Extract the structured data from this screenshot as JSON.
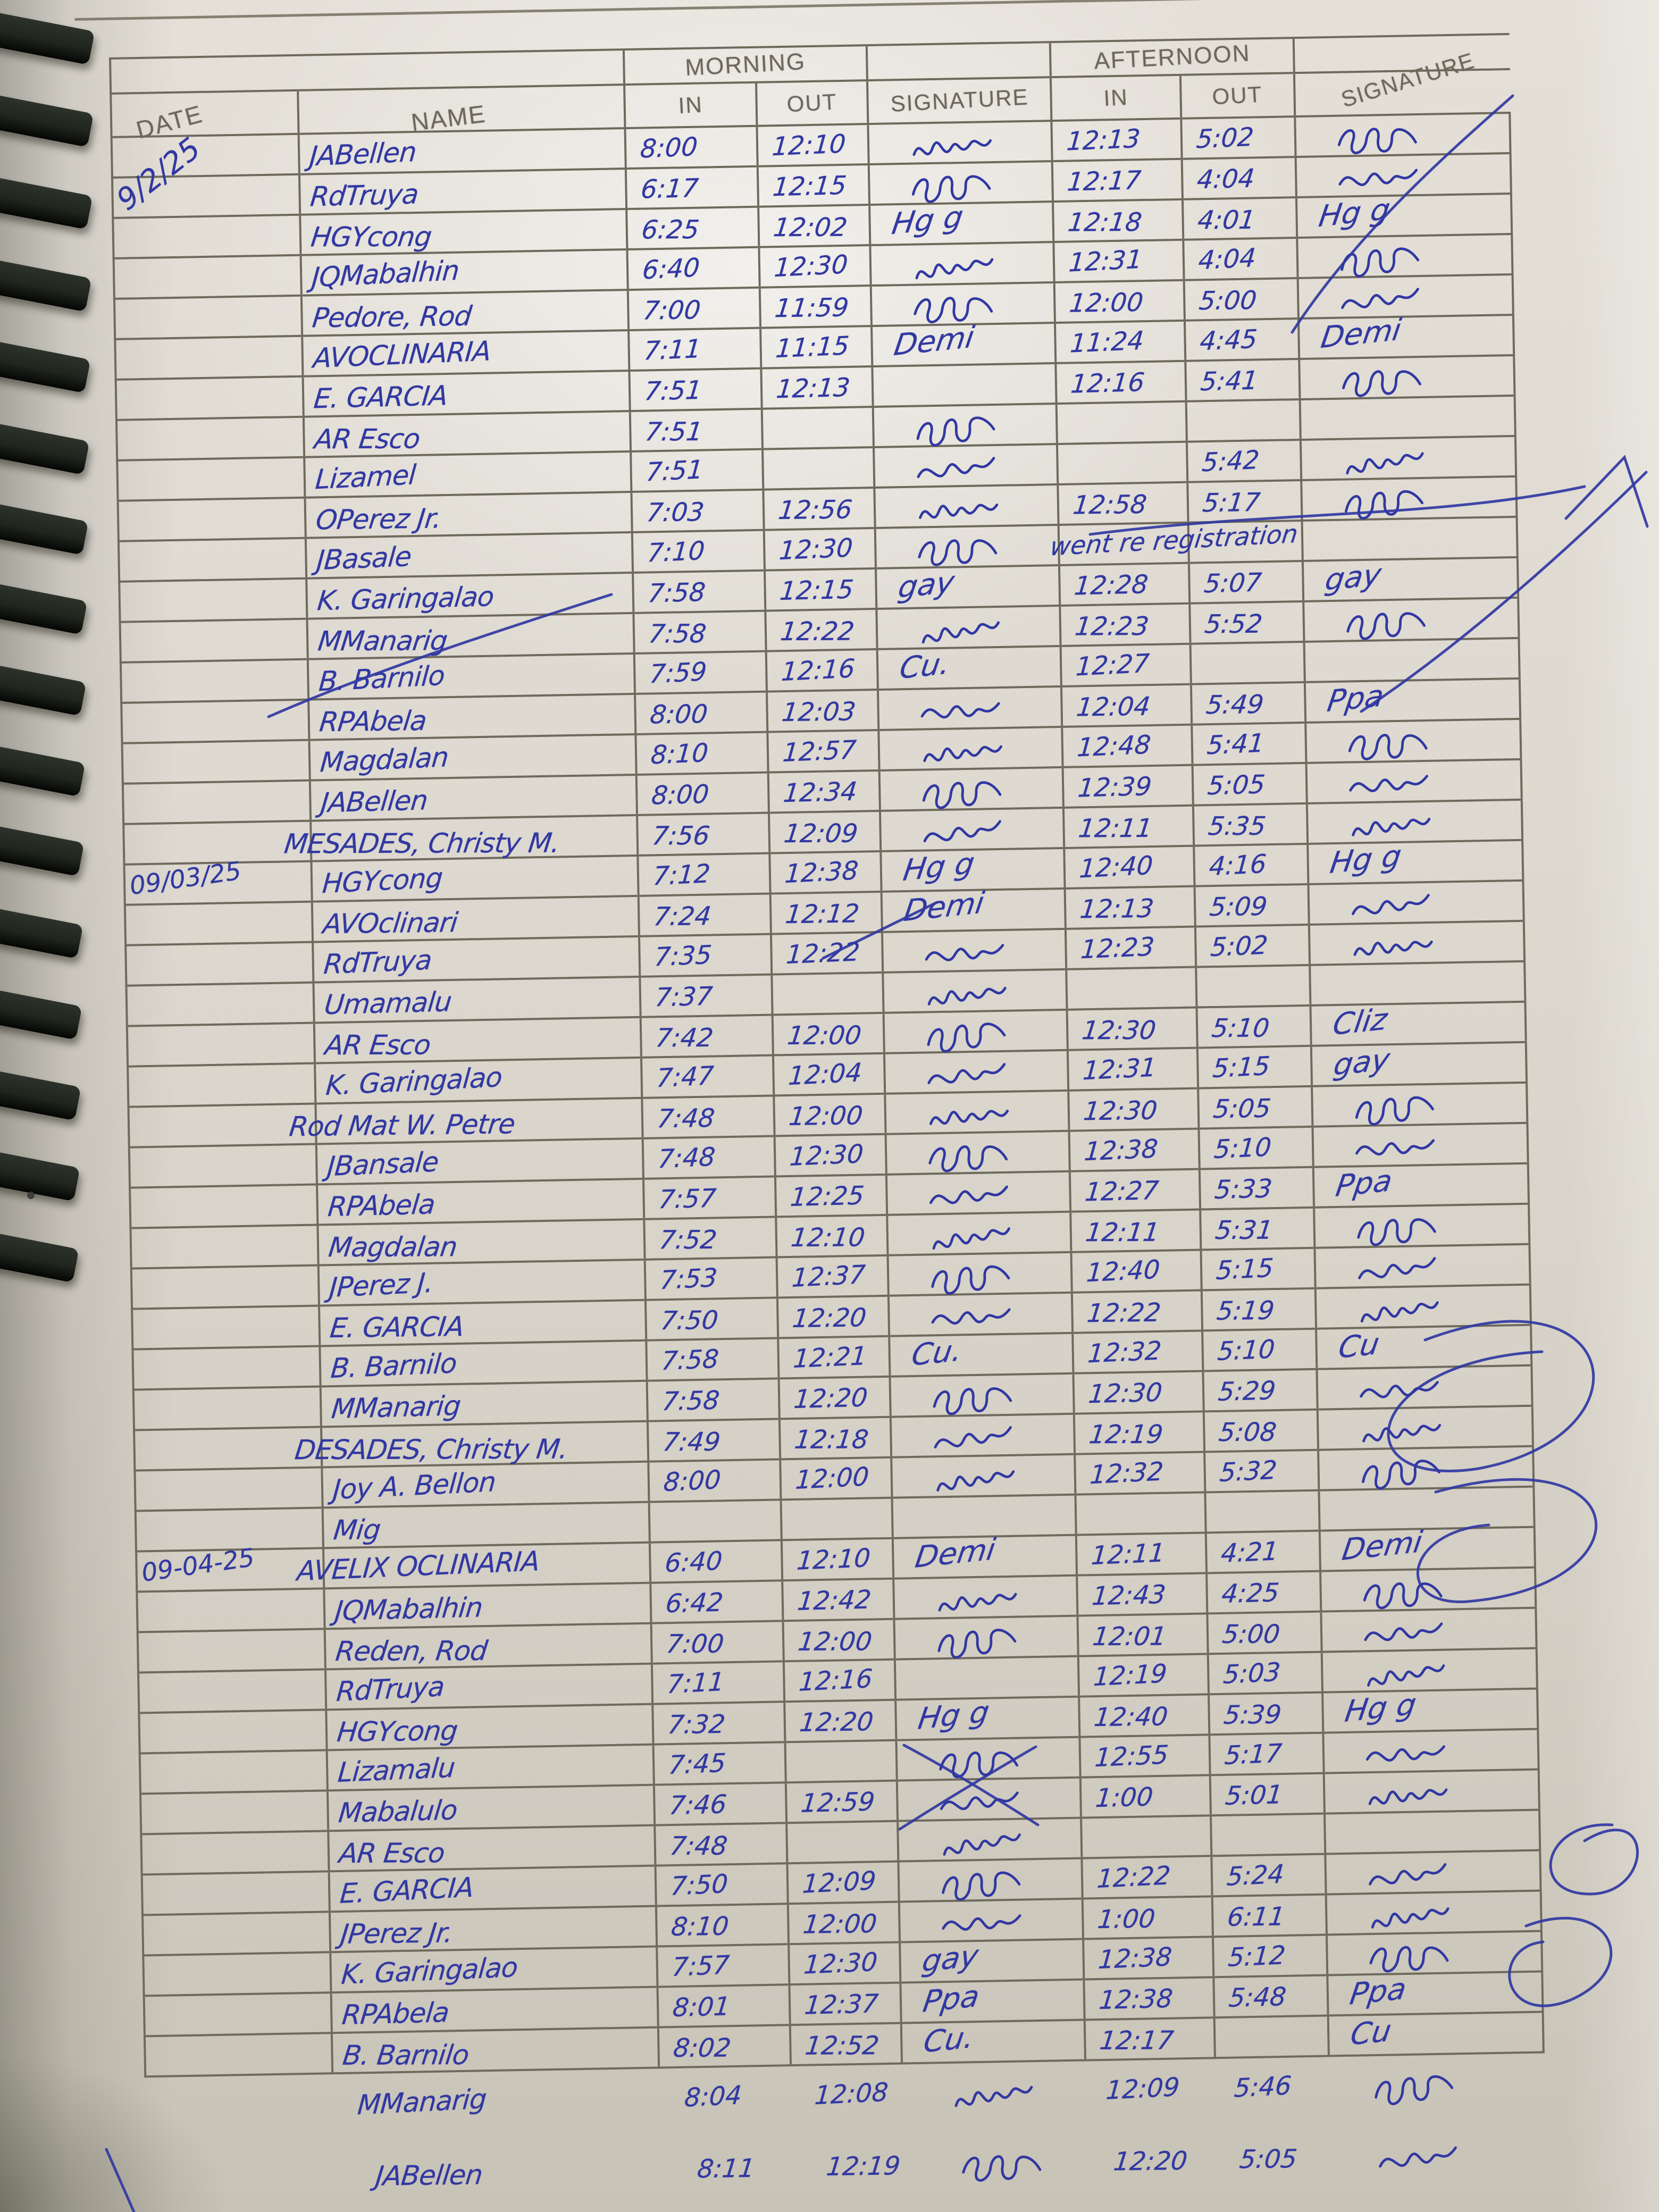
{
  "colors": {
    "ink": "#3138a2",
    "line": "#6e6a5c",
    "coil": "#20251d"
  },
  "header": {
    "date": "DATE",
    "name": "NAME",
    "morning": "MORNING",
    "afternoon": "AFTERNOON",
    "in": "IN",
    "out": "OUT",
    "signature": "SIGNATURE"
  },
  "rows": [
    {
      "date": "",
      "name": "JABellen",
      "m_in": "8:00",
      "m_out": "12:10",
      "m_sig": "scribble",
      "a_in": "12:13",
      "a_out": "5:02",
      "a_sig": "scribble",
      "note": ""
    },
    {
      "date": "9/2/25",
      "name": "RdTruya",
      "m_in": "6:17",
      "m_out": "12:15",
      "m_sig": "scribble",
      "a_in": "12:17",
      "a_out": "4:04",
      "a_sig": "scribble",
      "note": ""
    },
    {
      "date": "",
      "name": "HGYcong",
      "m_in": "6:25",
      "m_out": "12:02",
      "m_sig": "Hg g",
      "a_in": "12:18",
      "a_out": "4:01",
      "a_sig": "Hg g",
      "note": ""
    },
    {
      "date": "",
      "name": "JQMabalhin",
      "m_in": "6:40",
      "m_out": "12:30",
      "m_sig": "scribble",
      "a_in": "12:31",
      "a_out": "4:04",
      "a_sig": "scribble",
      "note": ""
    },
    {
      "date": "",
      "name": "Pedore, Rod",
      "m_in": "7:00",
      "m_out": "11:59",
      "m_sig": "scribble",
      "a_in": "12:00",
      "a_out": "5:00",
      "a_sig": "scribble",
      "note": ""
    },
    {
      "date": "",
      "name": "AVOCLINARIA",
      "m_in": "7:11",
      "m_out": "11:15",
      "m_sig": "Demi",
      "a_in": "11:24",
      "a_out": "4:45",
      "a_sig": "Demi",
      "note": ""
    },
    {
      "date": "",
      "name": "E. GARCIA",
      "m_in": "7:51",
      "m_out": "12:13",
      "m_sig": "",
      "a_in": "12:16",
      "a_out": "5:41",
      "a_sig": "scribble",
      "note": ""
    },
    {
      "date": "",
      "name": "AR Esco",
      "m_in": "7:51",
      "m_out": "",
      "m_sig": "scribble",
      "a_in": "",
      "a_out": "",
      "a_sig": "",
      "note": ""
    },
    {
      "date": "",
      "name": "Lizamel",
      "m_in": "7:51",
      "m_out": "",
      "m_sig": "scribble",
      "a_in": "",
      "a_out": "5:42",
      "a_sig": "scribble",
      "note": ""
    },
    {
      "date": "",
      "name": "OPerez Jr.",
      "m_in": "7:03",
      "m_out": "12:56",
      "m_sig": "scribble",
      "a_in": "12:58",
      "a_out": "5:17",
      "a_sig": "scribble",
      "note": ""
    },
    {
      "date": "",
      "name": "JBasale",
      "m_in": "7:10",
      "m_out": "12:30",
      "m_sig": "scribble",
      "a_in": "",
      "a_out": "",
      "a_sig": "",
      "note": "went re registration"
    },
    {
      "date": "",
      "name": "K. Garingalao",
      "m_in": "7:58",
      "m_out": "12:15",
      "m_sig": "gay",
      "a_in": "12:28",
      "a_out": "5:07",
      "a_sig": "gay",
      "note": ""
    },
    {
      "date": "",
      "name": "MManarig",
      "m_in": "7:58",
      "m_out": "12:22",
      "m_sig": "scribble",
      "a_in": "12:23",
      "a_out": "5:52",
      "a_sig": "scribble",
      "note": ""
    },
    {
      "date": "",
      "name": "B. Barnilo",
      "m_in": "7:59",
      "m_out": "12:16",
      "m_sig": "Cu.",
      "a_in": "12:27",
      "a_out": "",
      "a_sig": "",
      "note": ""
    },
    {
      "date": "",
      "name": "RPAbela",
      "m_in": "8:00",
      "m_out": "12:03",
      "m_sig": "scribble",
      "a_in": "12:04",
      "a_out": "5:49",
      "a_sig": "Ppa",
      "note": ""
    },
    {
      "date": "",
      "name": "Magdalan",
      "m_in": "8:10",
      "m_out": "12:57",
      "m_sig": "scribble",
      "a_in": "12:48",
      "a_out": "5:41",
      "a_sig": "scribble",
      "note": ""
    },
    {
      "date": "",
      "name": "JABellen",
      "m_in": "8:00",
      "m_out": "12:34",
      "m_sig": "scribble",
      "a_in": "12:39",
      "a_out": "5:05",
      "a_sig": "scribble",
      "note": ""
    },
    {
      "date": "",
      "name": "MESADES, Christy M.",
      "m_in": "7:56",
      "m_out": "12:09",
      "m_sig": "scribble",
      "a_in": "12:11",
      "a_out": "5:35",
      "a_sig": "scribble",
      "note": ""
    },
    {
      "date": "09/03/25",
      "name": "HGYcong",
      "m_in": "7:12",
      "m_out": "12:38",
      "m_sig": "Hg g",
      "a_in": "12:40",
      "a_out": "4:16",
      "a_sig": "Hg g",
      "note": ""
    },
    {
      "date": "",
      "name": "AVOclinari",
      "m_in": "7:24",
      "m_out": "12:12",
      "m_sig": "Demi",
      "a_in": "12:13",
      "a_out": "5:09",
      "a_sig": "scribble",
      "note": ""
    },
    {
      "date": "",
      "name": "RdTruya",
      "m_in": "7:35",
      "m_out": "12:22",
      "m_sig": "scribble",
      "a_in": "12:23",
      "a_out": "5:02",
      "a_sig": "scribble",
      "note": ""
    },
    {
      "date": "",
      "name": "Umamalu",
      "m_in": "7:37",
      "m_out": "",
      "m_sig": "scribble",
      "a_in": "",
      "a_out": "",
      "a_sig": "",
      "note": ""
    },
    {
      "date": "",
      "name": "AR Esco",
      "m_in": "7:42",
      "m_out": "12:00",
      "m_sig": "scribble",
      "a_in": "12:30",
      "a_out": "5:10",
      "a_sig": "Cliz",
      "note": ""
    },
    {
      "date": "",
      "name": "K. Garingalao",
      "m_in": "7:47",
      "m_out": "12:04",
      "m_sig": "scribble",
      "a_in": "12:31",
      "a_out": "5:15",
      "a_sig": "gay",
      "note": ""
    },
    {
      "date": "",
      "name": "Rod Mat W. Petre",
      "m_in": "7:48",
      "m_out": "12:00",
      "m_sig": "scribble",
      "a_in": "12:30",
      "a_out": "5:05",
      "a_sig": "scribble",
      "note": ""
    },
    {
      "date": "",
      "name": "JBansale",
      "m_in": "7:48",
      "m_out": "12:30",
      "m_sig": "scribble",
      "a_in": "12:38",
      "a_out": "5:10",
      "a_sig": "scribble",
      "note": ""
    },
    {
      "date": "",
      "name": "RPAbela",
      "m_in": "7:57",
      "m_out": "12:25",
      "m_sig": "scribble",
      "a_in": "12:27",
      "a_out": "5:33",
      "a_sig": "Ppa",
      "note": ""
    },
    {
      "date": "",
      "name": "Magdalan",
      "m_in": "7:52",
      "m_out": "12:10",
      "m_sig": "scribble",
      "a_in": "12:11",
      "a_out": "5:31",
      "a_sig": "scribble",
      "note": ""
    },
    {
      "date": "",
      "name": "JPerez J.",
      "m_in": "7:53",
      "m_out": "12:37",
      "m_sig": "scribble",
      "a_in": "12:40",
      "a_out": "5:15",
      "a_sig": "scribble",
      "note": ""
    },
    {
      "date": "",
      "name": "E. GARCIA",
      "m_in": "7:50",
      "m_out": "12:20",
      "m_sig": "scribble",
      "a_in": "12:22",
      "a_out": "5:19",
      "a_sig": "scribble",
      "note": ""
    },
    {
      "date": "",
      "name": "B. Barnilo",
      "m_in": "7:58",
      "m_out": "12:21",
      "m_sig": "Cu.",
      "a_in": "12:32",
      "a_out": "5:10",
      "a_sig": "Cu",
      "note": ""
    },
    {
      "date": "",
      "name": "MManarig",
      "m_in": "7:58",
      "m_out": "12:20",
      "m_sig": "scribble",
      "a_in": "12:30",
      "a_out": "5:29",
      "a_sig": "scribble",
      "note": ""
    },
    {
      "date": "",
      "name": "DESADES, Christy M.",
      "m_in": "7:49",
      "m_out": "12:18",
      "m_sig": "scribble",
      "a_in": "12:19",
      "a_out": "5:08",
      "a_sig": "scribble",
      "note": ""
    },
    {
      "date": "",
      "name": "Joy A. Bellon",
      "m_in": "8:00",
      "m_out": "12:00",
      "m_sig": "scribble",
      "a_in": "12:32",
      "a_out": "5:32",
      "a_sig": "scribble",
      "note": ""
    },
    {
      "date": "",
      "name": "Mig",
      "m_in": "",
      "m_out": "",
      "m_sig": "",
      "a_in": "",
      "a_out": "",
      "a_sig": "",
      "note": ""
    },
    {
      "date": "09-04-25",
      "name": "AVELIX OCLINARIA",
      "m_in": "6:40",
      "m_out": "12:10",
      "m_sig": "Demi",
      "a_in": "12:11",
      "a_out": "4:21",
      "a_sig": "Demi",
      "note": ""
    },
    {
      "date": "",
      "name": "JQMabalhin",
      "m_in": "6:42",
      "m_out": "12:42",
      "m_sig": "scribble",
      "a_in": "12:43",
      "a_out": "4:25",
      "a_sig": "scribble",
      "note": ""
    },
    {
      "date": "",
      "name": "Reden, Rod",
      "m_in": "7:00",
      "m_out": "12:00",
      "m_sig": "scribble",
      "a_in": "12:01",
      "a_out": "5:00",
      "a_sig": "scribble",
      "note": ""
    },
    {
      "date": "",
      "name": "RdTruya",
      "m_in": "7:11",
      "m_out": "12:16",
      "m_sig": "",
      "a_in": "12:19",
      "a_out": "5:03",
      "a_sig": "scribble",
      "note": ""
    },
    {
      "date": "",
      "name": "HGYcong",
      "m_in": "7:32",
      "m_out": "12:20",
      "m_sig": "Hg g",
      "a_in": "12:40",
      "a_out": "5:39",
      "a_sig": "Hg g",
      "note": ""
    },
    {
      "date": "",
      "name": "Lizamalu",
      "m_in": "7:45",
      "m_out": "",
      "m_sig": "scribble",
      "a_in": "12:55",
      "a_out": "5:17",
      "a_sig": "scribble",
      "note": ""
    },
    {
      "date": "",
      "name": "Mabalulo",
      "m_in": "7:46",
      "m_out": "12:59",
      "m_sig": "scribble",
      "a_in": "1:00",
      "a_out": "5:01",
      "a_sig": "scribble",
      "note": ""
    },
    {
      "date": "",
      "name": "AR Esco",
      "m_in": "7:48",
      "m_out": "",
      "m_sig": "scribble",
      "a_in": "",
      "a_out": "",
      "a_sig": "",
      "note": ""
    },
    {
      "date": "",
      "name": "E. GARCIA",
      "m_in": "7:50",
      "m_out": "12:09",
      "m_sig": "scribble",
      "a_in": "12:22",
      "a_out": "5:24",
      "a_sig": "scribble",
      "note": ""
    },
    {
      "date": "",
      "name": "JPerez Jr.",
      "m_in": "8:10",
      "m_out": "12:00",
      "m_sig": "scribble",
      "a_in": "1:00",
      "a_out": "6:11",
      "a_sig": "scribble",
      "note": ""
    },
    {
      "date": "",
      "name": "K. Garingalao",
      "m_in": "7:57",
      "m_out": "12:30",
      "m_sig": "gay",
      "a_in": "12:38",
      "a_out": "5:12",
      "a_sig": "scribble",
      "note": ""
    },
    {
      "date": "",
      "name": "RPAbela",
      "m_in": "8:01",
      "m_out": "12:37",
      "m_sig": "Ppa",
      "a_in": "12:38",
      "a_out": "5:48",
      "a_sig": "Ppa",
      "note": ""
    },
    {
      "date": "",
      "name": "B. Barnilo",
      "m_in": "8:02",
      "m_out": "12:52",
      "m_sig": "Cu.",
      "a_in": "12:17",
      "a_out": "",
      "a_sig": "Cu",
      "note": ""
    },
    {
      "date": "",
      "name": "MManarig",
      "m_in": "8:04",
      "m_out": "12:08",
      "m_sig": "scribble",
      "a_in": "12:09",
      "a_out": "5:46",
      "a_sig": "scribble",
      "note": "",
      "free": true
    },
    {
      "date": "",
      "name": "JABellen",
      "m_in": "8:11",
      "m_out": "12:19",
      "m_sig": "scribble",
      "a_in": "12:20",
      "a_out": "5:05",
      "a_sig": "scribble",
      "note": "",
      "free": true
    }
  ]
}
